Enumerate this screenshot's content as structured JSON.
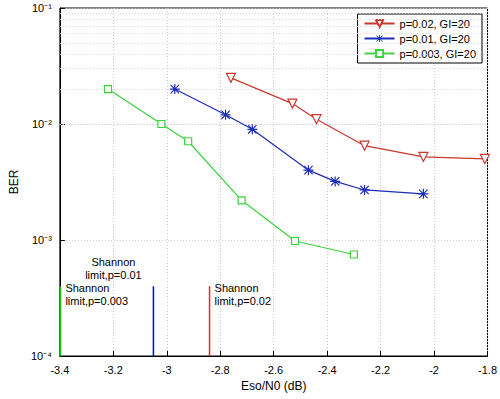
{
  "chart_data": {
    "type": "line",
    "x_label": "Eso/N0 (dB)",
    "y_label": "BER",
    "log": "y",
    "grid": true,
    "legend": "upper right",
    "xlim": [
      -3.4,
      -1.8
    ],
    "xticks": [
      -3.4,
      -3.2,
      -3,
      -2.8,
      -2.6,
      -2.4,
      -2.2,
      -2,
      -1.8
    ],
    "ylim": [
      0.0001,
      0.1
    ],
    "yticks": [
      {
        "value": 0.0001,
        "label": "10⁻⁴"
      },
      {
        "value": 0.001,
        "label": "10⁻³"
      },
      {
        "value": 0.01,
        "label": "10⁻²"
      },
      {
        "value": 0.1,
        "label": "10⁻¹"
      }
    ],
    "series": [
      {
        "name": "p=0.02, GI=20",
        "color": "#c8382c",
        "marker": "triangle-down-open",
        "x": [
          -2.76,
          -2.53,
          -2.44,
          -2.26,
          -2.04,
          -1.81
        ],
        "values": [
          0.025,
          0.015,
          0.011,
          0.0065,
          0.0052,
          0.005
        ]
      },
      {
        "name": "p=0.01, GI=20",
        "color": "#1c2db8",
        "marker": "asterisk",
        "x": [
          -2.97,
          -2.78,
          -2.68,
          -2.47,
          -2.37,
          -2.26,
          -2.04
        ],
        "values": [
          0.02,
          0.012,
          0.009,
          0.004,
          0.0032,
          0.0027,
          0.0025
        ]
      },
      {
        "name": "p=0.003, GI=20",
        "color": "#3cd23c",
        "marker": "square-open",
        "x": [
          -3.22,
          -3.02,
          -2.92,
          -2.72,
          -2.52,
          -2.3
        ],
        "values": [
          0.02,
          0.01,
          0.0071,
          0.0022,
          0.00098,
          0.00075
        ]
      }
    ],
    "shannon_limits": [
      {
        "text": "Shannon\nlimit,p=0.003",
        "x": -3.398,
        "ber_top": 0.0004,
        "color": "#00c800"
      },
      {
        "text": "Shannon\nlimit,p=0.01",
        "x": -3.05,
        "ber_top": 0.0004,
        "color": "#0000ff"
      },
      {
        "text": "Shannon\nlimit,p=0.02",
        "x": -2.84,
        "ber_top": 0.0004,
        "color": "#ff2020"
      }
    ]
  }
}
